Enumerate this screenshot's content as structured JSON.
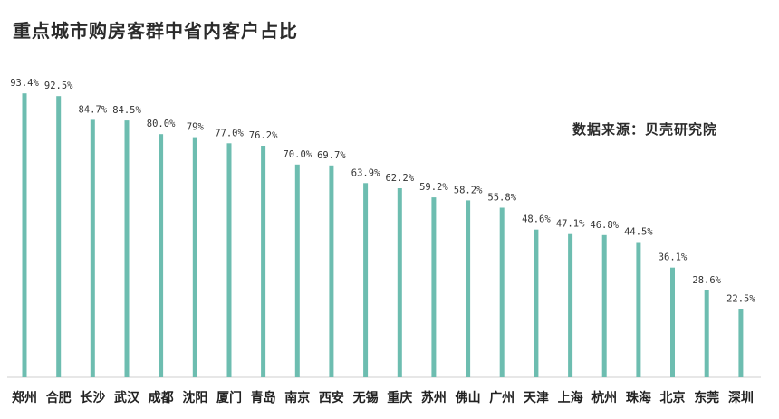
{
  "title": "重点城市购房客群中省内客户占比",
  "source": "数据来源：贝壳研究院",
  "chart_data": {
    "type": "bar",
    "title": "重点城市购房客群中省内客户占比",
    "xlabel": "",
    "ylabel": "",
    "ylim": [
      0,
      100
    ],
    "grid": false,
    "bar_color": "#6dbdb0",
    "categories": [
      "郑州",
      "合肥",
      "长沙",
      "武汉",
      "成都",
      "沈阳",
      "厦门",
      "青岛",
      "南京",
      "西安",
      "无锡",
      "重庆",
      "苏州",
      "佛山",
      "广州",
      "天津",
      "上海",
      "杭州",
      "珠海",
      "北京",
      "东莞",
      "深圳"
    ],
    "values": [
      93.4,
      92.5,
      84.7,
      84.5,
      80.0,
      79,
      77.0,
      76.2,
      70.0,
      69.7,
      63.9,
      62.2,
      59.2,
      58.2,
      55.8,
      48.6,
      47.1,
      46.8,
      44.5,
      36.1,
      28.6,
      22.5
    ],
    "labels": [
      "93.4%",
      "92.5%",
      "84.7%",
      "84.5%",
      "80.0%",
      "79%",
      "77.0%",
      "76.2%",
      "70.0%",
      "69.7%",
      "63.9%",
      "62.2%",
      "59.2%",
      "58.2%",
      "55.8%",
      "48.6%",
      "47.1%",
      "46.8%",
      "44.5%",
      "36.1%",
      "28.6%",
      "22.5%"
    ]
  }
}
